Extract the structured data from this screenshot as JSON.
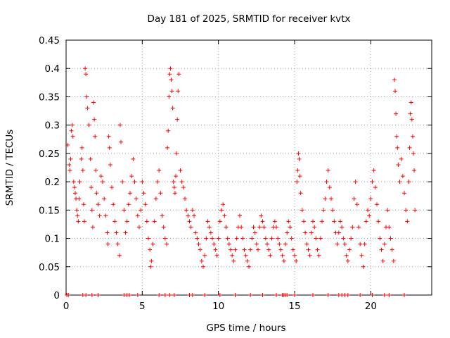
{
  "chart_data": {
    "type": "scatter",
    "title": "Day 181 of 2025, SRMTID for receiver kvtx",
    "xlabel": "GPS time / hours",
    "ylabel": "SRMTID / TECUs",
    "xlim": [
      0,
      24
    ],
    "ylim": [
      0,
      0.45
    ],
    "xticks": [
      0,
      5,
      10,
      15,
      20
    ],
    "yticks": [
      0,
      0.05,
      0.1,
      0.15,
      0.2,
      0.25,
      0.3,
      0.35,
      0.4,
      0.45
    ],
    "ytick_labels": [
      "0",
      "0.05",
      "0.1",
      "0.15",
      "0.2",
      "0.25",
      "0.3",
      "0.35",
      "0.4",
      "0.45"
    ],
    "xtick_labels": [
      "0",
      "5",
      "10",
      "15",
      "20"
    ],
    "grid": true,
    "marker": "+",
    "series": [
      {
        "name": "SRMTID",
        "color": "#ff0000",
        "points": [
          [
            0.1,
            0.265
          ],
          [
            0.2,
            0.23
          ],
          [
            0.25,
            0.22
          ],
          [
            0.3,
            0.24
          ],
          [
            0.35,
            0.29
          ],
          [
            0.4,
            0.3
          ],
          [
            0.45,
            0.28
          ],
          [
            0.5,
            0.2
          ],
          [
            0.55,
            0.19
          ],
          [
            0.6,
            0.18
          ],
          [
            0.65,
            0.17
          ],
          [
            0.7,
            0.15
          ],
          [
            0.75,
            0.14
          ],
          [
            0.8,
            0.13
          ],
          [
            0.85,
            0.17
          ],
          [
            0.9,
            0.2
          ],
          [
            1.0,
            0.24
          ],
          [
            1.05,
            0.26
          ],
          [
            1.1,
            0.22
          ],
          [
            1.15,
            0.16
          ],
          [
            1.2,
            0.13
          ],
          [
            1.25,
            0.4
          ],
          [
            1.3,
            0.39
          ],
          [
            1.35,
            0.35
          ],
          [
            1.4,
            0.33
          ],
          [
            1.5,
            0.3
          ],
          [
            1.6,
            0.24
          ],
          [
            1.65,
            0.19
          ],
          [
            1.7,
            0.15
          ],
          [
            1.75,
            0.12
          ],
          [
            1.8,
            0.34
          ],
          [
            1.85,
            0.31
          ],
          [
            1.9,
            0.28
          ],
          [
            1.95,
            0.22
          ],
          [
            2.0,
            0.18
          ],
          [
            2.1,
            0.16
          ],
          [
            2.2,
            0.14
          ],
          [
            2.3,
            0.21
          ],
          [
            2.4,
            0.2
          ],
          [
            2.5,
            0.17
          ],
          [
            2.6,
            0.14
          ],
          [
            2.7,
            0.11
          ],
          [
            2.75,
            0.09
          ],
          [
            2.8,
            0.28
          ],
          [
            2.85,
            0.26
          ],
          [
            2.9,
            0.23
          ],
          [
            3.0,
            0.19
          ],
          [
            3.1,
            0.16
          ],
          [
            3.2,
            0.13
          ],
          [
            3.3,
            0.11
          ],
          [
            3.4,
            0.09
          ],
          [
            3.5,
            0.07
          ],
          [
            3.55,
            0.3
          ],
          [
            3.6,
            0.27
          ],
          [
            3.7,
            0.2
          ],
          [
            3.8,
            0.15
          ],
          [
            3.9,
            0.11
          ],
          [
            4.0,
            0.13
          ],
          [
            4.1,
            0.16
          ],
          [
            4.2,
            0.18
          ],
          [
            4.3,
            0.21
          ],
          [
            4.4,
            0.24
          ],
          [
            4.5,
            0.2
          ],
          [
            4.6,
            0.17
          ],
          [
            4.7,
            0.14
          ],
          [
            4.8,
            0.12
          ],
          [
            4.9,
            0.15
          ],
          [
            5.0,
            0.2
          ],
          [
            5.1,
            0.18
          ],
          [
            5.2,
            0.16
          ],
          [
            5.3,
            0.13
          ],
          [
            5.4,
            0.1
          ],
          [
            5.5,
            0.08
          ],
          [
            5.55,
            0.05
          ],
          [
            5.6,
            0.06
          ],
          [
            5.7,
            0.09
          ],
          [
            5.8,
            0.13
          ],
          [
            5.9,
            0.17
          ],
          [
            6.0,
            0.2
          ],
          [
            6.1,
            0.22
          ],
          [
            6.2,
            0.18
          ],
          [
            6.3,
            0.14
          ],
          [
            6.4,
            0.12
          ],
          [
            6.5,
            0.1
          ],
          [
            6.6,
            0.09
          ],
          [
            6.65,
            0.26
          ],
          [
            6.7,
            0.29
          ],
          [
            6.75,
            0.35
          ],
          [
            6.8,
            0.39
          ],
          [
            6.85,
            0.4
          ],
          [
            6.9,
            0.38
          ],
          [
            6.95,
            0.36
          ],
          [
            7.0,
            0.33
          ],
          [
            7.05,
            0.2
          ],
          [
            7.1,
            0.19
          ],
          [
            7.15,
            0.18
          ],
          [
            7.2,
            0.21
          ],
          [
            7.25,
            0.25
          ],
          [
            7.3,
            0.31
          ],
          [
            7.35,
            0.36
          ],
          [
            7.4,
            0.39
          ],
          [
            7.5,
            0.22
          ],
          [
            7.6,
            0.2
          ],
          [
            7.7,
            0.19
          ],
          [
            7.8,
            0.17
          ],
          [
            7.9,
            0.15
          ],
          [
            8.0,
            0.14
          ],
          [
            8.1,
            0.13
          ],
          [
            8.2,
            0.12
          ],
          [
            8.3,
            0.15
          ],
          [
            8.4,
            0.14
          ],
          [
            8.5,
            0.11
          ],
          [
            8.6,
            0.1
          ],
          [
            8.7,
            0.09
          ],
          [
            8.8,
            0.08
          ],
          [
            8.9,
            0.06
          ],
          [
            9.0,
            0.05
          ],
          [
            9.1,
            0.07
          ],
          [
            9.2,
            0.1
          ],
          [
            9.3,
            0.13
          ],
          [
            9.4,
            0.12
          ],
          [
            9.5,
            0.11
          ],
          [
            9.6,
            0.1
          ],
          [
            9.7,
            0.09
          ],
          [
            9.8,
            0.08
          ],
          [
            9.9,
            0.07
          ],
          [
            10.0,
            0.1
          ],
          [
            10.1,
            0.13
          ],
          [
            10.2,
            0.15
          ],
          [
            10.3,
            0.16
          ],
          [
            10.4,
            0.14
          ],
          [
            10.5,
            0.12
          ],
          [
            10.6,
            0.1
          ],
          [
            10.7,
            0.09
          ],
          [
            10.8,
            0.08
          ],
          [
            10.9,
            0.07
          ],
          [
            11.0,
            0.06
          ],
          [
            11.1,
            0.08
          ],
          [
            11.2,
            0.1
          ],
          [
            11.3,
            0.12
          ],
          [
            11.4,
            0.14
          ],
          [
            11.5,
            0.12
          ],
          [
            11.6,
            0.1
          ],
          [
            11.7,
            0.08
          ],
          [
            11.8,
            0.07
          ],
          [
            11.9,
            0.06
          ],
          [
            12.0,
            0.05
          ],
          [
            12.1,
            0.08
          ],
          [
            12.2,
            0.1
          ],
          [
            12.3,
            0.12
          ],
          [
            12.4,
            0.11
          ],
          [
            12.5,
            0.09
          ],
          [
            12.6,
            0.08
          ],
          [
            12.7,
            0.12
          ],
          [
            12.8,
            0.14
          ],
          [
            12.9,
            0.13
          ],
          [
            13.0,
            0.12
          ],
          [
            13.1,
            0.1
          ],
          [
            13.2,
            0.09
          ],
          [
            13.3,
            0.08
          ],
          [
            13.4,
            0.07
          ],
          [
            13.5,
            0.1
          ],
          [
            13.6,
            0.12
          ],
          [
            13.7,
            0.13
          ],
          [
            13.8,
            0.12
          ],
          [
            13.9,
            0.1
          ],
          [
            14.0,
            0.09
          ],
          [
            14.1,
            0.08
          ],
          [
            14.2,
            0.07
          ],
          [
            14.3,
            0.06
          ],
          [
            14.4,
            0.09
          ],
          [
            14.5,
            0.11
          ],
          [
            14.6,
            0.13
          ],
          [
            14.7,
            0.12
          ],
          [
            14.8,
            0.1
          ],
          [
            14.9,
            0.08
          ],
          [
            15.0,
            0.07
          ],
          [
            15.1,
            0.06
          ],
          [
            15.15,
            0.2
          ],
          [
            15.2,
            0.22
          ],
          [
            15.25,
            0.25
          ],
          [
            15.3,
            0.24
          ],
          [
            15.35,
            0.21
          ],
          [
            15.4,
            0.18
          ],
          [
            15.5,
            0.15
          ],
          [
            15.6,
            0.13
          ],
          [
            15.7,
            0.11
          ],
          [
            15.8,
            0.09
          ],
          [
            15.9,
            0.08
          ],
          [
            16.0,
            0.07
          ],
          [
            16.1,
            0.11
          ],
          [
            16.2,
            0.13
          ],
          [
            16.3,
            0.12
          ],
          [
            16.4,
            0.1
          ],
          [
            16.5,
            0.08
          ],
          [
            16.6,
            0.07
          ],
          [
            16.7,
            0.1
          ],
          [
            16.8,
            0.13
          ],
          [
            16.9,
            0.15
          ],
          [
            17.0,
            0.17
          ],
          [
            17.1,
            0.2
          ],
          [
            17.2,
            0.22
          ],
          [
            17.3,
            0.19
          ],
          [
            17.4,
            0.17
          ],
          [
            17.5,
            0.15
          ],
          [
            17.6,
            0.13
          ],
          [
            17.7,
            0.11
          ],
          [
            17.8,
            0.09
          ],
          [
            17.9,
            0.11
          ],
          [
            18.0,
            0.13
          ],
          [
            18.1,
            0.12
          ],
          [
            18.2,
            0.1
          ],
          [
            18.3,
            0.09
          ],
          [
            18.4,
            0.07
          ],
          [
            18.5,
            0.06
          ],
          [
            18.6,
            0.08
          ],
          [
            18.7,
            0.1
          ],
          [
            18.8,
            0.12
          ],
          [
            18.9,
            0.17
          ],
          [
            19.0,
            0.2
          ],
          [
            19.1,
            0.16
          ],
          [
            19.2,
            0.12
          ],
          [
            19.3,
            0.09
          ],
          [
            19.4,
            0.07
          ],
          [
            19.5,
            0.05
          ],
          [
            19.6,
            0.09
          ],
          [
            19.7,
            0.13
          ],
          [
            19.8,
            0.15
          ],
          [
            19.9,
            0.14
          ],
          [
            20.0,
            0.17
          ],
          [
            20.1,
            0.2
          ],
          [
            20.2,
            0.22
          ],
          [
            20.3,
            0.19
          ],
          [
            20.4,
            0.16
          ],
          [
            20.5,
            0.13
          ],
          [
            20.6,
            0.1
          ],
          [
            20.7,
            0.08
          ],
          [
            20.8,
            0.06
          ],
          [
            20.9,
            0.09
          ],
          [
            21.0,
            0.12
          ],
          [
            21.1,
            0.15
          ],
          [
            21.2,
            0.12
          ],
          [
            21.3,
            0.1
          ],
          [
            21.4,
            0.08
          ],
          [
            21.5,
            0.06
          ],
          [
            21.55,
            0.38
          ],
          [
            21.6,
            0.36
          ],
          [
            21.65,
            0.32
          ],
          [
            21.7,
            0.28
          ],
          [
            21.75,
            0.26
          ],
          [
            21.8,
            0.23
          ],
          [
            21.9,
            0.2
          ],
          [
            22.0,
            0.24
          ],
          [
            22.1,
            0.21
          ],
          [
            22.2,
            0.18
          ],
          [
            22.3,
            0.15
          ],
          [
            22.4,
            0.13
          ],
          [
            22.5,
            0.2
          ],
          [
            22.55,
            0.26
          ],
          [
            22.6,
            0.32
          ],
          [
            22.65,
            0.34
          ],
          [
            22.7,
            0.31
          ],
          [
            22.75,
            0.28
          ],
          [
            22.8,
            0.25
          ],
          [
            22.85,
            0.22
          ],
          [
            22.9,
            0.15
          ],
          [
            0.05,
            0.0
          ],
          [
            0.15,
            0.0
          ],
          [
            1.1,
            0.0
          ],
          [
            1.3,
            0.0
          ],
          [
            1.7,
            0.0
          ],
          [
            2.1,
            0.0
          ],
          [
            3.8,
            0.0
          ],
          [
            4.0,
            0.0
          ],
          [
            4.15,
            0.0
          ],
          [
            4.7,
            0.0
          ],
          [
            6.1,
            0.0
          ],
          [
            6.5,
            0.0
          ],
          [
            6.8,
            0.0
          ],
          [
            7.1,
            0.0
          ],
          [
            8.1,
            0.0
          ],
          [
            8.3,
            0.0
          ],
          [
            9.1,
            0.0
          ],
          [
            10.1,
            0.0
          ],
          [
            11.1,
            0.0
          ],
          [
            12.1,
            0.0
          ],
          [
            12.9,
            0.0
          ],
          [
            13.8,
            0.0
          ],
          [
            14.2,
            0.0
          ],
          [
            14.3,
            0.0
          ],
          [
            14.4,
            0.0
          ],
          [
            14.5,
            0.0
          ],
          [
            15.0,
            0.0
          ],
          [
            16.2,
            0.0
          ],
          [
            17.2,
            0.0
          ],
          [
            17.9,
            0.0
          ],
          [
            18.1,
            0.0
          ],
          [
            18.3,
            0.0
          ],
          [
            18.5,
            0.0
          ],
          [
            19.3,
            0.0
          ],
          [
            20.1,
            0.0
          ],
          [
            20.9,
            0.0
          ],
          [
            21.2,
            0.0
          ],
          [
            22.2,
            0.0
          ]
        ]
      }
    ]
  }
}
